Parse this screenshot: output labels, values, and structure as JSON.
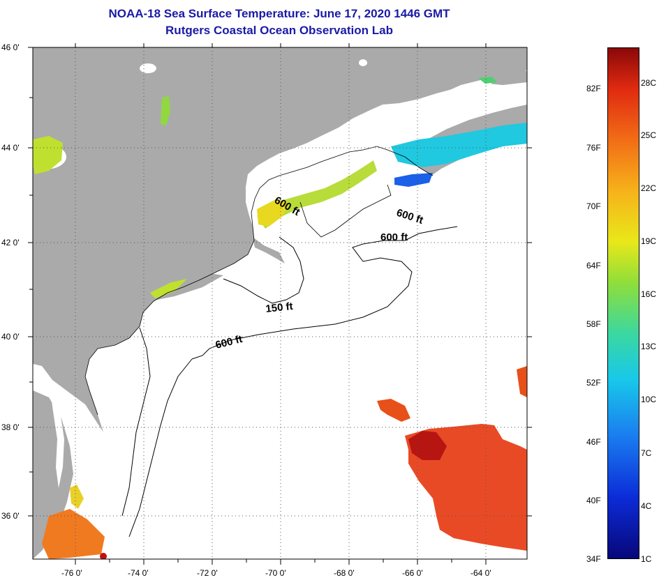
{
  "header": {
    "title_line1": "NOAA-18 Sea Surface Temperature:  June 17, 2020 1446 GMT",
    "title_line2": "Rutgers Coastal Ocean Observation Lab"
  },
  "axes": {
    "lat_labels": [
      "46 0'",
      "44 0'",
      "42 0'",
      "40 0'",
      "38 0'",
      "36 0'"
    ],
    "lon_labels": [
      "-76 0'",
      "-74 0'",
      "-72 0'",
      "-70 0'",
      "-68 0'",
      "-66 0'",
      "-64 0'"
    ]
  },
  "depth_labels": {
    "a": "600 ft",
    "b": "600 ft",
    "c": "600 ft",
    "d": "150 ft",
    "e": "600 ft"
  },
  "colorbar": {
    "fahrenheit": [
      "82F",
      "76F",
      "70F",
      "64F",
      "58F",
      "52F",
      "46F",
      "40F",
      "34F"
    ],
    "celsius": [
      "28C",
      "25C",
      "22C",
      "19C",
      "16C",
      "13C",
      "10C",
      "7C",
      "4C",
      "1C"
    ]
  },
  "colors": {
    "land": "#aaaaaa",
    "water": "#ffffff",
    "title": "#1a1aa6",
    "warm": "#e8401a",
    "cool": "#1ea0e8",
    "mid": "#c6e23a"
  }
}
